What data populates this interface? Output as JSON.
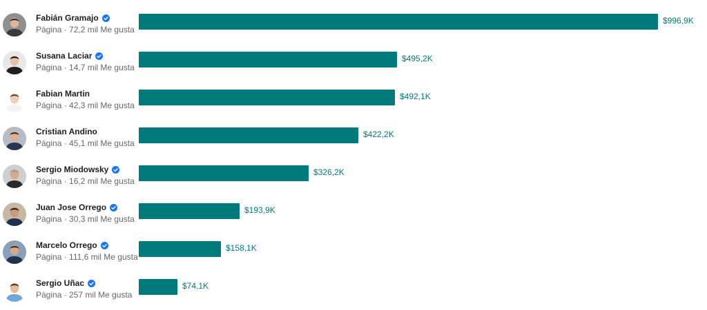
{
  "chart_data": {
    "type": "bar",
    "orientation": "horizontal",
    "value_format": "$K",
    "bar_color": "#007a7b",
    "label_color": "#007a7c",
    "categories": [
      "Fabián Gramajo",
      "Susana Laciar",
      "Fabian Martin",
      "Cristian Andino",
      "Sergio Miodowsky",
      "Juan Jose Orrego",
      "Marcelo Orrego",
      "Sergio Uñac"
    ],
    "values": [
      996.9,
      495.2,
      492.1,
      422.2,
      326.2,
      193.9,
      158.1,
      74.1
    ],
    "xlim": [
      0,
      996.9
    ],
    "rows": [
      {
        "name": "Fabián Gramajo",
        "verified": true,
        "type": "Página",
        "likes": "72,2 mil Me gusta",
        "value_label": "$996,9K",
        "avatar": "avatar-photo"
      },
      {
        "name": "Susana Laciar",
        "verified": true,
        "type": "Página",
        "likes": "14,7 mil Me gusta",
        "value_label": "$495,2K",
        "avatar": "avatar-photo"
      },
      {
        "name": "Fabian Martin",
        "verified": false,
        "type": "Página",
        "likes": "42,3 mil Me gusta",
        "value_label": "$492,1K",
        "avatar": "avatar-photo"
      },
      {
        "name": "Cristian Andino",
        "verified": false,
        "type": "Página",
        "likes": "45,1 mil Me gusta",
        "value_label": "$422,2K",
        "avatar": "avatar-photo"
      },
      {
        "name": "Sergio Miodowsky",
        "verified": true,
        "type": "Página",
        "likes": "16,2 mil Me gusta",
        "value_label": "$326,2K",
        "avatar": "avatar-photo"
      },
      {
        "name": "Juan Jose Orrego",
        "verified": true,
        "type": "Página",
        "likes": "30,3 mil Me gusta",
        "value_label": "$193,9K",
        "avatar": "avatar-photo"
      },
      {
        "name": "Marcelo Orrego",
        "verified": true,
        "type": "Página",
        "likes": "111,6 mil Me gusta",
        "value_label": "$158,1K",
        "avatar": "avatar-photo"
      },
      {
        "name": "Sergio Uñac",
        "verified": true,
        "type": "Página",
        "likes": "257 mil Me gusta",
        "value_label": "$74,1K",
        "avatar": "avatar-photo"
      }
    ]
  },
  "colors": {
    "verified_badge": "#1877f2",
    "name_text": "#1c1e21",
    "sub_text": "#65676b"
  },
  "icons": {
    "verified": "verified-badge-icon"
  }
}
